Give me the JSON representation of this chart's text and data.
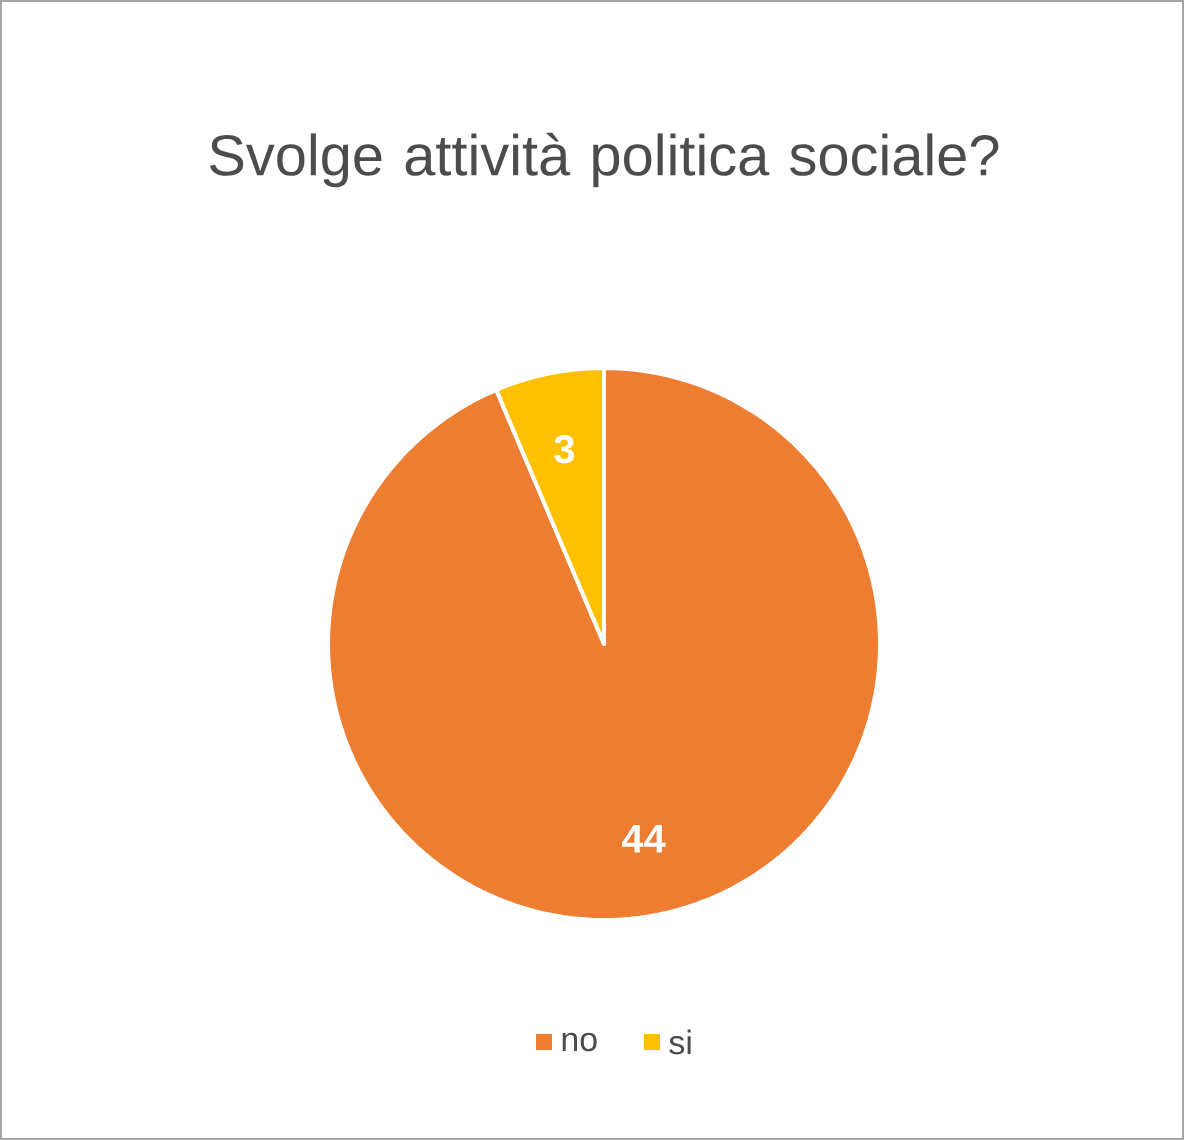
{
  "chart_data": {
    "type": "pie",
    "title": "Svolge attività politica sociale?",
    "categories": [
      "no",
      "si"
    ],
    "values": [
      44,
      3
    ],
    "colors": [
      "#ed7d31",
      "#ffc000"
    ],
    "data_labels": true,
    "legend": "bottom"
  }
}
